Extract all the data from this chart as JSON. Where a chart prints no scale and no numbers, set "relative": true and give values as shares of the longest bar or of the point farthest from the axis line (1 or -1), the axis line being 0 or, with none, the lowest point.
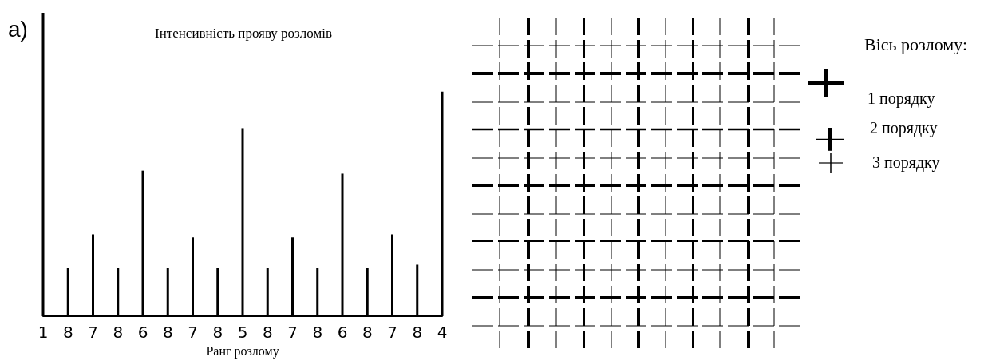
{
  "chart_data": {
    "type": "bar",
    "relative": true,
    "title": "Інтенсивність прояву розломів",
    "xlabel": "Ранг розлому",
    "categories": [
      "1",
      "8",
      "7",
      "8",
      "6",
      "8",
      "7",
      "8",
      "5",
      "8",
      "7",
      "8",
      "6",
      "8",
      "7",
      "8",
      "4"
    ],
    "values": [
      1,
      0.16,
      0.27,
      0.16,
      0.48,
      0.16,
      0.26,
      0.16,
      0.62,
      0.16,
      0.26,
      0.16,
      0.47,
      0.16,
      0.27,
      0.17,
      0.74
    ],
    "color": "#000000",
    "grid": false,
    "annotations": [
      "а)",
      "Вісь розлому:",
      "1 порядку",
      "2 порядку",
      "3 порядку"
    ]
  }
}
